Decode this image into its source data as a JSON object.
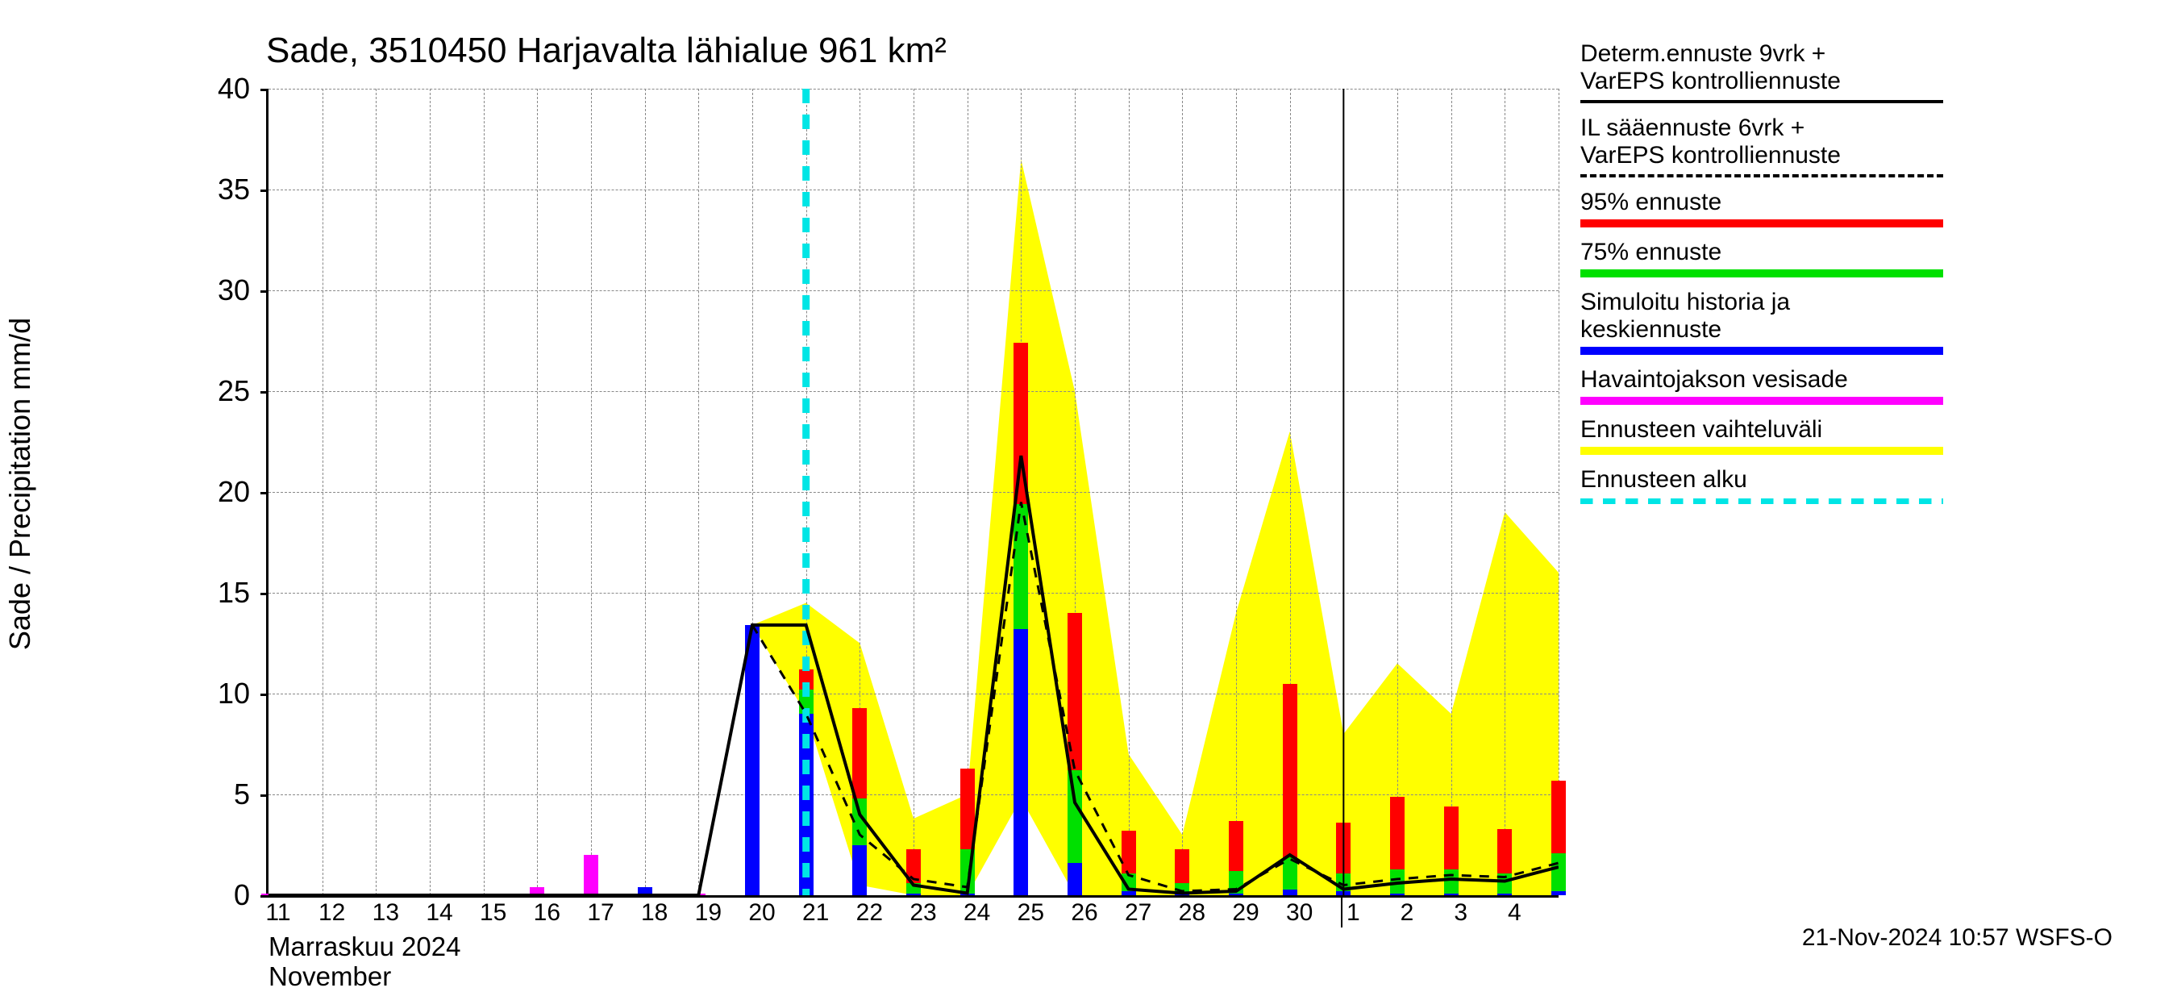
{
  "title": "Sade, 3510450 Harjavalta lähialue 961 km²",
  "y_axis_label": "Sade / Precipitation   mm/d",
  "month_label_1": "Marraskuu 2024",
  "month_label_2": "November",
  "footer": "21-Nov-2024 10:57 WSFS-O",
  "chart": {
    "type": "bar+line+area",
    "ylim": [
      0,
      40
    ],
    "ytick_step": 5,
    "x_categories": [
      "11",
      "12",
      "13",
      "14",
      "15",
      "16",
      "17",
      "18",
      "19",
      "20",
      "21",
      "22",
      "23",
      "24",
      "25",
      "26",
      "27",
      "28",
      "29",
      "30",
      "1",
      "2",
      "3",
      "4",
      ""
    ],
    "colors": {
      "axis": "#000000",
      "grid": "#888888",
      "background": "#ffffff",
      "yellow_band": "#ffff00",
      "blue": "#0000ff",
      "green": "#00e000",
      "red": "#ff0000",
      "magenta": "#ff00ff",
      "black_line": "#000000",
      "cyan_dash": "#00e5e5"
    },
    "tick_fontsize": 36,
    "title_fontsize": 44,
    "forecast_start_index": 10,
    "month_break_index": 20,
    "bars": [
      {
        "i": 0,
        "magenta": 0.1
      },
      {
        "i": 1,
        "magenta": 0.1
      },
      {
        "i": 2,
        "magenta": 0.1
      },
      {
        "i": 3,
        "magenta": 0.1
      },
      {
        "i": 4,
        "magenta": 0
      },
      {
        "i": 5,
        "magenta": 0.4
      },
      {
        "i": 6,
        "magenta": 2.0
      },
      {
        "i": 7,
        "blue": 0.4
      },
      {
        "i": 8,
        "magenta": 0.1
      },
      {
        "i": 9,
        "blue": 13.4
      },
      {
        "i": 10,
        "blue": 9.0,
        "green": 1.2,
        "red": 1.0
      },
      {
        "i": 11,
        "blue": 2.5,
        "green": 2.3,
        "red": 4.5
      },
      {
        "i": 12,
        "blue": 0.1,
        "green": 0.5,
        "red": 1.7
      },
      {
        "i": 13,
        "blue": 0.1,
        "green": 2.2,
        "red": 4.0
      },
      {
        "i": 14,
        "blue": 13.2,
        "green": 6.2,
        "red": 8.0
      },
      {
        "i": 15,
        "blue": 1.6,
        "green": 4.6,
        "red": 7.8
      },
      {
        "i": 16,
        "blue": 0.2,
        "green": 0.9,
        "red": 2.1
      },
      {
        "i": 17,
        "blue": 0.1,
        "green": 0.5,
        "red": 1.7
      },
      {
        "i": 18,
        "blue": 0.1,
        "green": 1.1,
        "red": 2.5
      },
      {
        "i": 19,
        "blue": 0.3,
        "green": 1.6,
        "red": 8.6
      },
      {
        "i": 20,
        "blue": 0.2,
        "green": 0.9,
        "red": 2.5
      },
      {
        "i": 21,
        "blue": 0.1,
        "green": 1.2,
        "red": 3.6
      },
      {
        "i": 22,
        "blue": 0.1,
        "green": 1.2,
        "red": 3.1
      },
      {
        "i": 23,
        "blue": 0.1,
        "green": 1.0,
        "red": 2.2
      },
      {
        "i": 24,
        "blue": 0.2,
        "green": 1.9,
        "red": 3.6
      }
    ],
    "yellow_band": [
      {
        "i": 9,
        "low": 13.4,
        "high": 13.4
      },
      {
        "i": 10,
        "low": 9.0,
        "high": 14.5
      },
      {
        "i": 11,
        "low": 0.5,
        "high": 12.5
      },
      {
        "i": 12,
        "low": 0.0,
        "high": 3.8
      },
      {
        "i": 13,
        "low": 0.0,
        "high": 5.0
      },
      {
        "i": 14,
        "low": 4.8,
        "high": 36.5
      },
      {
        "i": 15,
        "low": 0.0,
        "high": 25.0
      },
      {
        "i": 16,
        "low": 0.0,
        "high": 7.0
      },
      {
        "i": 17,
        "low": 0.0,
        "high": 3.0
      },
      {
        "i": 18,
        "low": 0.0,
        "high": 14.0
      },
      {
        "i": 19,
        "low": 0.0,
        "high": 23.0
      },
      {
        "i": 20,
        "low": 0.0,
        "high": 8.0
      },
      {
        "i": 21,
        "low": 0.0,
        "high": 11.5
      },
      {
        "i": 22,
        "low": 0.0,
        "high": 9.0
      },
      {
        "i": 23,
        "low": 0.0,
        "high": 19.0
      },
      {
        "i": 24,
        "low": 0.0,
        "high": 16.0
      }
    ],
    "solid_line": [
      {
        "i": 0,
        "y": 0
      },
      {
        "i": 1,
        "y": 0
      },
      {
        "i": 2,
        "y": 0
      },
      {
        "i": 3,
        "y": 0
      },
      {
        "i": 4,
        "y": 0
      },
      {
        "i": 5,
        "y": 0
      },
      {
        "i": 6,
        "y": 0
      },
      {
        "i": 7,
        "y": 0
      },
      {
        "i": 8,
        "y": 0
      },
      {
        "i": 9,
        "y": 13.4
      },
      {
        "i": 10,
        "y": 13.4
      },
      {
        "i": 11,
        "y": 4.0
      },
      {
        "i": 12,
        "y": 0.5
      },
      {
        "i": 13,
        "y": 0.1
      },
      {
        "i": 14,
        "y": 21.8
      },
      {
        "i": 15,
        "y": 4.6
      },
      {
        "i": 16,
        "y": 0.3
      },
      {
        "i": 17,
        "y": 0.1
      },
      {
        "i": 18,
        "y": 0.2
      },
      {
        "i": 19,
        "y": 2.0
      },
      {
        "i": 20,
        "y": 0.3
      },
      {
        "i": 21,
        "y": 0.6
      },
      {
        "i": 22,
        "y": 0.8
      },
      {
        "i": 23,
        "y": 0.7
      },
      {
        "i": 24,
        "y": 1.4
      }
    ],
    "dashed_line": [
      {
        "i": 9,
        "y": 13.4
      },
      {
        "i": 10,
        "y": 9.0
      },
      {
        "i": 11,
        "y": 3.0
      },
      {
        "i": 12,
        "y": 0.8
      },
      {
        "i": 13,
        "y": 0.4
      },
      {
        "i": 14,
        "y": 19.5
      },
      {
        "i": 15,
        "y": 6.2
      },
      {
        "i": 16,
        "y": 1.0
      },
      {
        "i": 17,
        "y": 0.2
      },
      {
        "i": 18,
        "y": 0.3
      },
      {
        "i": 19,
        "y": 1.8
      },
      {
        "i": 20,
        "y": 0.5
      },
      {
        "i": 21,
        "y": 0.8
      },
      {
        "i": 22,
        "y": 1.0
      },
      {
        "i": 23,
        "y": 0.9
      },
      {
        "i": 24,
        "y": 1.6
      }
    ]
  },
  "legend": {
    "items": [
      {
        "label1": "Determ.ennuste 9vrk +",
        "label2": "VarEPS kontrolliennuste",
        "type": "line-solid"
      },
      {
        "label1": "IL sääennuste 6vrk  +",
        "label2": " VarEPS kontrolliennuste",
        "type": "line-dash"
      },
      {
        "label1": "95% ennuste",
        "type": "swatch",
        "color": "#ff0000"
      },
      {
        "label1": "75% ennuste",
        "type": "swatch",
        "color": "#00e000"
      },
      {
        "label1": "Simuloitu historia ja",
        "label2": "keskiennuste",
        "type": "swatch",
        "color": "#0000ff"
      },
      {
        "label1": "Havaintojakson vesisade",
        "type": "swatch",
        "color": "#ff00ff"
      },
      {
        "label1": "Ennusteen vaihteluväli",
        "type": "swatch",
        "color": "#ffff00"
      },
      {
        "label1": "Ennusteen alku",
        "type": "dash-cyan"
      }
    ]
  }
}
